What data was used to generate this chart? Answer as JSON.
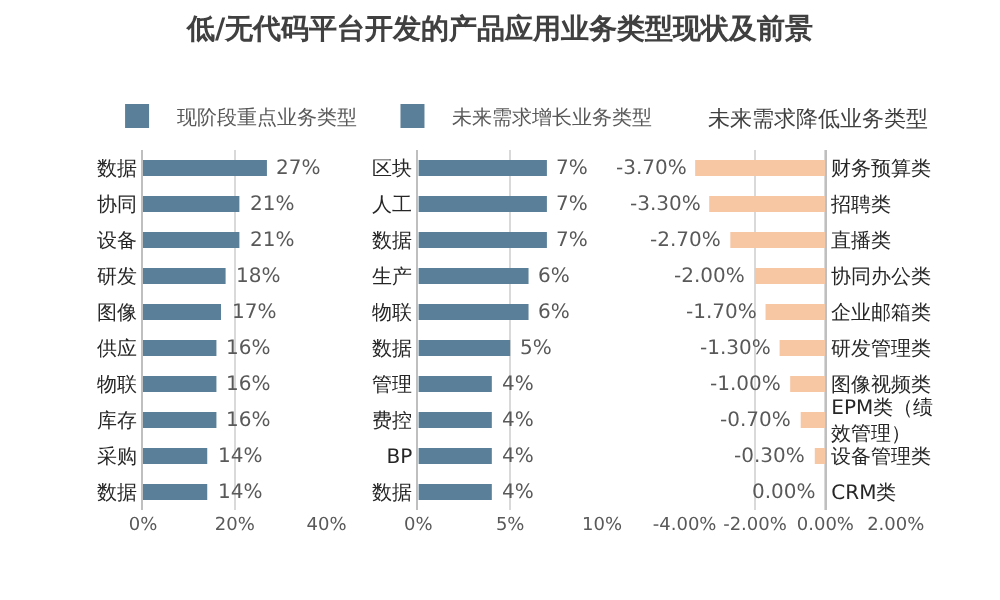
{
  "chart_data": [
    {
      "type": "bar",
      "orientation": "horizontal",
      "title": "低/无代码平台开发的产品应用业务类型现状及前景",
      "categories": [
        "数据",
        "协同",
        "设备",
        "研发",
        "图像",
        "供应",
        "物联",
        "库存",
        "采购",
        "数据"
      ],
      "series": [
        {
          "name": "现阶段重点业务类型",
          "color": "#5a7f98",
          "values": [
            27,
            21,
            21,
            18,
            17,
            16,
            16,
            16,
            14,
            14
          ]
        }
      ],
      "value_labels": [
        "27%",
        "21%",
        "21%",
        "18%",
        "17%",
        "16%",
        "16%",
        "16%",
        "14%",
        "14%"
      ],
      "xlim": [
        0,
        40
      ],
      "xticks": [
        {
          "value": 0,
          "label": "0%"
        },
        {
          "value": 20,
          "label": "20%"
        },
        {
          "value": 40,
          "label": "40%"
        }
      ],
      "grid": "x",
      "legend": "top"
    },
    {
      "type": "bar",
      "orientation": "horizontal",
      "categories": [
        "区块",
        "人工",
        "数据",
        "生产",
        "物联",
        "数据",
        "管理",
        "费控",
        "BP",
        "数据"
      ],
      "series": [
        {
          "name": "未来需求增长业务类型",
          "color": "#5a7f98",
          "values": [
            7,
            7,
            7,
            6,
            6,
            5,
            4,
            4,
            4,
            4
          ]
        }
      ],
      "value_labels": [
        "7%",
        "7%",
        "7%",
        "6%",
        "6%",
        "5%",
        "4%",
        "4%",
        "4%",
        "4%"
      ],
      "xlim": [
        0,
        10
      ],
      "xticks": [
        {
          "value": 0,
          "label": "0%"
        },
        {
          "value": 5,
          "label": "5%"
        },
        {
          "value": 10,
          "label": "10%"
        }
      ],
      "grid": "x",
      "legend": "top"
    },
    {
      "type": "bar",
      "orientation": "horizontal",
      "title": "未来需求降低业务类型",
      "categories": [
        "财务预算类",
        "招聘类",
        "直播类",
        "协同办公类",
        "企业邮箱类",
        "研发管理类",
        "图像视频类",
        "EPM类（绩效管理）",
        "设备管理类",
        "CRM类"
      ],
      "series": [
        {
          "color": "#f7c6a3",
          "values": [
            -3.7,
            -3.3,
            -2.7,
            -2.0,
            -1.7,
            -1.3,
            -1.0,
            -0.7,
            -0.3,
            0.0
          ]
        }
      ],
      "value_labels": [
        "-3.70%",
        "-3.30%",
        "-2.70%",
        "-2.00%",
        "-1.70%",
        "-1.30%",
        "-1.00%",
        "-0.70%",
        "-0.30%",
        "0.00%"
      ],
      "xlim": [
        -4,
        2
      ],
      "xticks": [
        {
          "value": -4,
          "label": "-4.00%"
        },
        {
          "value": -2,
          "label": "-2.00%"
        },
        {
          "value": 0,
          "label": "0.00%"
        },
        {
          "value": 2,
          "label": "2.00%"
        }
      ],
      "grid": "x"
    }
  ]
}
